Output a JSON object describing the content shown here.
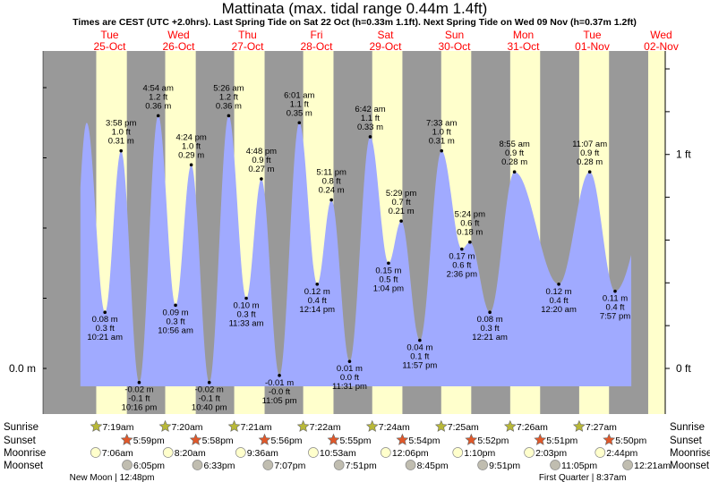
{
  "chart_data": {
    "type": "area",
    "title": "Mattinata (max. tidal range 0.44m 1.4ft)",
    "subtitle": "Times are CEST (UTC +2.0hrs). Last Spring Tide on Sat 22 Oct (h=0.33m 1.1ft). Next Spring Tide on Wed 09 Nov (h=0.37m 1.2ft)",
    "days": [
      {
        "dow": "Tue",
        "date": "25-Oct"
      },
      {
        "dow": "Wed",
        "date": "26-Oct"
      },
      {
        "dow": "Thu",
        "date": "27-Oct"
      },
      {
        "dow": "Fri",
        "date": "28-Oct"
      },
      {
        "dow": "Sat",
        "date": "29-Oct"
      },
      {
        "dow": "Sun",
        "date": "30-Oct"
      },
      {
        "dow": "Mon",
        "date": "31-Oct"
      },
      {
        "dow": "Tue",
        "date": "01-Nov"
      },
      {
        "dow": "Wed",
        "date": "02-Nov"
      }
    ],
    "left_axis_label": "0.0 m",
    "right_axis_labels": [
      "1 ft",
      "0 ft"
    ],
    "ylim_m": [
      -0.025,
      0.5
    ],
    "extremes": [
      {
        "day": 0,
        "time": "10:21 am",
        "h": 0.08,
        "m": "0.08 m",
        "ft": "0.3 ft",
        "type": "low"
      },
      {
        "day": 0,
        "time": "3:58 pm",
        "h": 0.31,
        "m": "0.31 m",
        "ft": "1.0 ft",
        "type": "high"
      },
      {
        "day": 0,
        "time": "10:16 pm",
        "h": -0.02,
        "m": "-0.02 m",
        "ft": "-0.1 ft",
        "type": "low"
      },
      {
        "day": 1,
        "time": "4:54 am",
        "h": 0.36,
        "m": "0.36 m",
        "ft": "1.2 ft",
        "type": "high"
      },
      {
        "day": 1,
        "time": "10:56 am",
        "h": 0.09,
        "m": "0.09 m",
        "ft": "0.3 ft",
        "type": "low"
      },
      {
        "day": 1,
        "time": "4:24 pm",
        "h": 0.29,
        "m": "0.29 m",
        "ft": "1.0 ft",
        "type": "high"
      },
      {
        "day": 1,
        "time": "10:40 pm",
        "h": -0.02,
        "m": "-0.02 m",
        "ft": "-0.1 ft",
        "type": "low"
      },
      {
        "day": 2,
        "time": "5:26 am",
        "h": 0.36,
        "m": "0.36 m",
        "ft": "1.2 ft",
        "type": "high"
      },
      {
        "day": 2,
        "time": "11:33 am",
        "h": 0.1,
        "m": "0.10 m",
        "ft": "0.3 ft",
        "type": "low"
      },
      {
        "day": 2,
        "time": "4:48 pm",
        "h": 0.27,
        "m": "0.27 m",
        "ft": "0.9 ft",
        "type": "high"
      },
      {
        "day": 2,
        "time": "11:05 pm",
        "h": -0.01,
        "m": "-0.01 m",
        "ft": "-0.0 ft",
        "type": "low"
      },
      {
        "day": 3,
        "time": "6:01 am",
        "h": 0.35,
        "m": "0.35 m",
        "ft": "1.1 ft",
        "type": "high"
      },
      {
        "day": 3,
        "time": "12:14 pm",
        "h": 0.12,
        "m": "0.12 m",
        "ft": "0.4 ft",
        "type": "low"
      },
      {
        "day": 3,
        "time": "5:11 pm",
        "h": 0.24,
        "m": "0.24 m",
        "ft": "0.8 ft",
        "type": "high"
      },
      {
        "day": 3,
        "time": "11:31 pm",
        "h": 0.01,
        "m": "0.01 m",
        "ft": "0.0 ft",
        "type": "low"
      },
      {
        "day": 4,
        "time": "6:42 am",
        "h": 0.33,
        "m": "0.33 m",
        "ft": "1.1 ft",
        "type": "high"
      },
      {
        "day": 4,
        "time": "1:04 pm",
        "h": 0.15,
        "m": "0.15 m",
        "ft": "0.5 ft",
        "type": "low"
      },
      {
        "day": 4,
        "time": "5:29 pm",
        "h": 0.21,
        "m": "0.21 m",
        "ft": "0.7 ft",
        "type": "high"
      },
      {
        "day": 4,
        "time": "11:57 pm",
        "h": 0.04,
        "m": "0.04 m",
        "ft": "0.1 ft",
        "type": "low"
      },
      {
        "day": 5,
        "time": "7:33 am",
        "h": 0.31,
        "m": "0.31 m",
        "ft": "1.0 ft",
        "type": "high"
      },
      {
        "day": 5,
        "time": "2:36 pm",
        "h": 0.17,
        "m": "0.17 m",
        "ft": "0.6 ft",
        "type": "low"
      },
      {
        "day": 5,
        "time": "5:24 pm",
        "h": 0.18,
        "m": "0.18 m",
        "ft": "0.6 ft",
        "type": "high"
      },
      {
        "day": 6,
        "time": "12:21 am",
        "h": 0.08,
        "m": "0.08 m",
        "ft": "0.3 ft",
        "type": "low"
      },
      {
        "day": 6,
        "time": "8:55 am",
        "h": 0.28,
        "m": "0.28 m",
        "ft": "0.9 ft",
        "type": "high"
      },
      {
        "day": 7,
        "time": "12:20 am",
        "h": 0.12,
        "m": "0.12 m",
        "ft": "0.4 ft",
        "type": "low"
      },
      {
        "day": 7,
        "time": "11:07 am",
        "h": 0.28,
        "m": "0.28 m",
        "ft": "0.9 ft",
        "type": "high"
      },
      {
        "day": 7,
        "time": "7:57 pm",
        "h": 0.11,
        "m": "0.11 m",
        "ft": "0.4 ft",
        "type": "low"
      }
    ],
    "rows": {
      "labels": {
        "sunrise": "Sunrise",
        "sunset": "Sunset",
        "moonrise": "Moonrise",
        "moonset": "Moonset"
      },
      "sunrise": [
        "7:19am",
        "7:20am",
        "7:21am",
        "7:22am",
        "7:24am",
        "7:25am",
        "7:26am",
        "7:27am"
      ],
      "sunset": [
        "5:59pm",
        "5:58pm",
        "5:56pm",
        "5:55pm",
        "5:54pm",
        "5:52pm",
        "5:51pm",
        "5:50pm"
      ],
      "moonrise": [
        "7:06am",
        "8:20am",
        "9:36am",
        "10:53am",
        "12:06pm",
        "1:10pm",
        "2:03pm",
        "2:44pm"
      ],
      "moonset": [
        "6:05pm",
        "6:33pm",
        "7:07pm",
        "7:51pm",
        "8:45pm",
        "9:51pm",
        "11:05pm",
        "12:21am"
      ],
      "phases": [
        {
          "text": "New Moon | 12:48pm",
          "day": 0,
          "time": "12:48pm"
        },
        {
          "text": "First Quarter | 8:37am",
          "day": 7,
          "time": "8:37am"
        }
      ]
    }
  },
  "colors": {
    "night": "#999999",
    "day": "#ffffcc",
    "water": "#a0aaff",
    "daylabel": "#ff0000",
    "sunrise": "#b8b838",
    "sunset": "#e0582a",
    "moonrise": "#ffffcc",
    "moonset": "#c0bdb0"
  }
}
